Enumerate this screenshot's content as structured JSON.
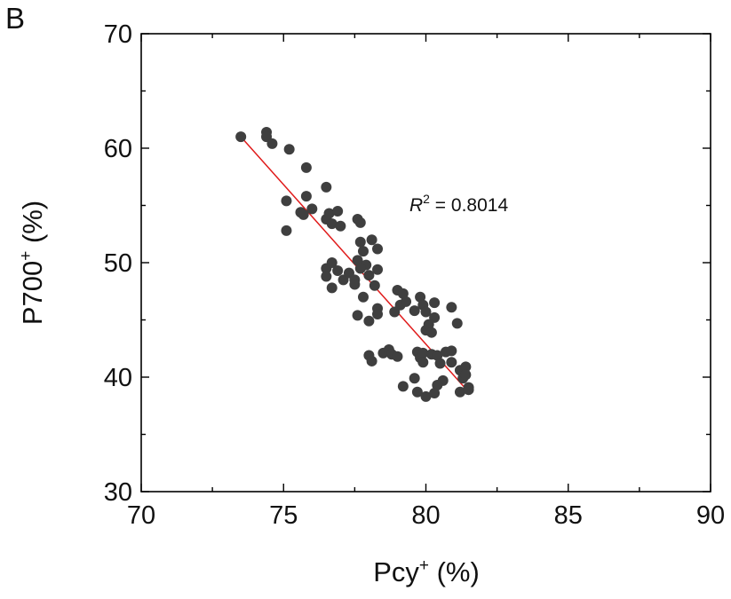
{
  "panel_label": "B",
  "colors": {
    "points": "#3f3f3f",
    "fit_line": "#e01b1b",
    "axes": "#000000"
  },
  "chart_data": {
    "type": "scatter",
    "xlabel": {
      "base": "Pcy",
      "sup": "+",
      "unit": " (%)"
    },
    "ylabel": {
      "base": "P700",
      "sup": "+",
      "unit": " (%)"
    },
    "xlim": [
      70,
      90
    ],
    "ylim": [
      30,
      70
    ],
    "xticks": [
      70,
      75,
      80,
      85,
      90
    ],
    "yticks": [
      30,
      40,
      50,
      60,
      70
    ],
    "annotation": {
      "var": "R",
      "sup": "2",
      "text": " = 0.8014"
    },
    "fit_line": {
      "x": [
        73.5,
        81.5
      ],
      "y": [
        61.0,
        38.7
      ]
    },
    "points": [
      [
        73.5,
        61.0
      ],
      [
        74.4,
        61.4
      ],
      [
        74.4,
        61.0
      ],
      [
        74.6,
        60.4
      ],
      [
        75.2,
        59.9
      ],
      [
        75.8,
        58.3
      ],
      [
        75.1,
        55.4
      ],
      [
        75.8,
        55.8
      ],
      [
        75.6,
        54.4
      ],
      [
        75.7,
        54.2
      ],
      [
        76.0,
        54.7
      ],
      [
        76.5,
        56.6
      ],
      [
        76.5,
        53.8
      ],
      [
        76.7,
        53.4
      ],
      [
        76.6,
        54.3
      ],
      [
        76.9,
        54.5
      ],
      [
        77.0,
        53.2
      ],
      [
        77.6,
        53.8
      ],
      [
        77.7,
        53.5
      ],
      [
        75.1,
        52.8
      ],
      [
        77.7,
        51.8
      ],
      [
        77.8,
        51.0
      ],
      [
        78.1,
        52.0
      ],
      [
        78.3,
        51.2
      ],
      [
        77.6,
        50.2
      ],
      [
        77.9,
        49.8
      ],
      [
        76.5,
        49.5
      ],
      [
        76.7,
        50.0
      ],
      [
        76.5,
        48.8
      ],
      [
        76.9,
        49.3
      ],
      [
        77.1,
        48.5
      ],
      [
        77.3,
        49.1
      ],
      [
        77.5,
        48.5
      ],
      [
        77.7,
        49.5
      ],
      [
        78.0,
        48.9
      ],
      [
        78.2,
        48.0
      ],
      [
        78.3,
        49.4
      ],
      [
        76.7,
        47.8
      ],
      [
        77.5,
        48.1
      ],
      [
        77.8,
        47.0
      ],
      [
        78.3,
        46.0
      ],
      [
        78.3,
        45.5
      ],
      [
        77.6,
        45.4
      ],
      [
        78.0,
        44.9
      ],
      [
        78.9,
        45.7
      ],
      [
        79.0,
        47.6
      ],
      [
        79.2,
        47.3
      ],
      [
        79.1,
        46.3
      ],
      [
        79.3,
        46.6
      ],
      [
        79.6,
        45.8
      ],
      [
        79.8,
        47.0
      ],
      [
        79.9,
        46.3
      ],
      [
        80.0,
        45.7
      ],
      [
        80.3,
        46.5
      ],
      [
        80.3,
        45.2
      ],
      [
        80.0,
        44.1
      ],
      [
        80.1,
        44.6
      ],
      [
        80.2,
        43.9
      ],
      [
        80.9,
        46.1
      ],
      [
        81.1,
        44.7
      ],
      [
        78.0,
        41.9
      ],
      [
        78.1,
        41.4
      ],
      [
        78.5,
        42.1
      ],
      [
        78.7,
        42.4
      ],
      [
        78.8,
        42.0
      ],
      [
        79.0,
        41.8
      ],
      [
        79.2,
        39.2
      ],
      [
        79.7,
        42.2
      ],
      [
        79.8,
        41.7
      ],
      [
        79.9,
        42.1
      ],
      [
        79.9,
        41.3
      ],
      [
        80.2,
        42.0
      ],
      [
        80.4,
        41.9
      ],
      [
        80.7,
        42.2
      ],
      [
        80.9,
        42.3
      ],
      [
        80.5,
        41.2
      ],
      [
        80.6,
        39.7
      ],
      [
        80.4,
        39.3
      ],
      [
        79.6,
        39.9
      ],
      [
        79.7,
        38.7
      ],
      [
        80.0,
        38.3
      ],
      [
        80.3,
        38.6
      ],
      [
        81.2,
        38.7
      ],
      [
        81.2,
        40.6
      ],
      [
        81.4,
        40.9
      ],
      [
        81.3,
        39.9
      ],
      [
        81.4,
        40.2
      ],
      [
        81.5,
        39.1
      ],
      [
        81.5,
        38.9
      ],
      [
        80.9,
        41.3
      ]
    ]
  }
}
